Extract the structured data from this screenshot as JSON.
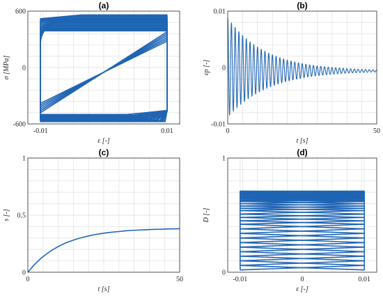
{
  "chart_data": [
    {
      "id": "a",
      "type": "line",
      "title": "(a)",
      "xlabel": "ε [-]",
      "ylabel": "σ [MPa]",
      "xlim": [
        -0.012,
        0.012
      ],
      "ylim": [
        -600,
        600
      ],
      "xticks": [
        -0.01,
        0.01
      ],
      "xtick_labels": [
        "-0.01",
        "0.01"
      ],
      "yticks": [
        -600,
        0,
        600
      ],
      "ytick_labels": [
        "-600",
        "0",
        "600"
      ],
      "grid": true,
      "series": [
        {
          "description_of_loops": "stacked hysteresis loops between ε=±0.01",
          "loops": [
            {
              "low": -500,
              "high": 560,
              "shift": 0.0065
            },
            {
              "low": -500,
              "high": 555,
              "shift": 0.006
            },
            {
              "low": -510,
              "high": 550,
              "shift": 0.0055
            },
            {
              "low": -515,
              "high": 545,
              "shift": 0.005
            },
            {
              "low": -520,
              "high": 540,
              "shift": 0.0046
            },
            {
              "low": -525,
              "high": 530,
              "shift": 0.0042
            },
            {
              "low": -530,
              "high": 520,
              "shift": 0.0038
            },
            {
              "low": -535,
              "high": 510,
              "shift": 0.0034
            },
            {
              "low": -540,
              "high": 500,
              "shift": 0.003
            },
            {
              "low": -545,
              "high": 490,
              "shift": 0.0027
            },
            {
              "low": -550,
              "high": 480,
              "shift": 0.0024
            },
            {
              "low": -555,
              "high": 470,
              "shift": 0.0021
            },
            {
              "low": -560,
              "high": 460,
              "shift": 0.0018
            },
            {
              "low": -560,
              "high": 450,
              "shift": 0.0015
            },
            {
              "low": -565,
              "high": 440,
              "shift": 0.0012
            },
            {
              "low": -565,
              "high": 430,
              "shift": 0.001
            },
            {
              "low": -570,
              "high": 420,
              "shift": 0.0008
            },
            {
              "low": -570,
              "high": 410,
              "shift": 0.0006
            },
            {
              "low": -575,
              "high": 400,
              "shift": 0.0004
            },
            {
              "low": -575,
              "high": 390,
              "shift": 0.0003
            }
          ]
        }
      ]
    },
    {
      "id": "b",
      "type": "line",
      "title": "(b)",
      "xlabel": "t [s]",
      "ylabel": "εp [-]",
      "xlim": [
        0,
        50
      ],
      "ylim": [
        -0.01,
        0.01
      ],
      "xticks": [
        0,
        50
      ],
      "xtick_labels": [
        "0",
        "50"
      ],
      "yticks": [
        -0.01,
        0,
        0.01
      ],
      "ytick_labels": [
        "-0.01",
        "0",
        "0.01"
      ],
      "grid": true,
      "series": [
        {
          "model": "damped oscillation",
          "amplitude0": 0.0088,
          "decay_time": 13,
          "cycles": 40,
          "offset_end": -0.0006
        }
      ]
    },
    {
      "id": "c",
      "type": "line",
      "title": "(c)",
      "xlabel": "t [s]",
      "ylabel": "s [-]",
      "xlim": [
        0,
        50
      ],
      "ylim": [
        0,
        1
      ],
      "xticks": [
        0,
        50
      ],
      "xtick_labels": [
        "0",
        "50"
      ],
      "yticks": [
        0,
        0.5,
        1
      ],
      "ytick_labels": [
        "0",
        "0.5",
        "1"
      ],
      "grid": true,
      "series": [
        {
          "x": [
            0,
            2,
            4,
            6,
            8,
            10,
            12,
            14,
            16,
            18,
            20,
            22,
            24,
            26,
            28,
            30,
            32,
            34,
            36,
            38,
            40,
            42,
            44,
            46,
            48,
            50
          ],
          "y": [
            0,
            0.062,
            0.114,
            0.158,
            0.194,
            0.225,
            0.251,
            0.272,
            0.29,
            0.305,
            0.318,
            0.329,
            0.338,
            0.346,
            0.352,
            0.357,
            0.362,
            0.366,
            0.369,
            0.371,
            0.374,
            0.376,
            0.377,
            0.379,
            0.38,
            0.381
          ]
        }
      ]
    },
    {
      "id": "d",
      "type": "line",
      "title": "(d)",
      "xlabel": "ε [-]",
      "ylabel": "D [-]",
      "xlim": [
        -0.012,
        0.012
      ],
      "ylim": [
        0,
        1
      ],
      "xticks": [
        -0.01,
        0,
        0.01
      ],
      "xtick_labels": [
        "-0.01",
        "0",
        "0.01"
      ],
      "yticks": [
        0,
        1
      ],
      "ytick_labels": [
        "0",
        "1"
      ],
      "grid": true,
      "series": [
        {
          "damage_levels": [
            0.02,
            0.06,
            0.1,
            0.14,
            0.18,
            0.22,
            0.26,
            0.3,
            0.34,
            0.38,
            0.42,
            0.45,
            0.48,
            0.51,
            0.54,
            0.56,
            0.58,
            0.6,
            0.62,
            0.63,
            0.64,
            0.65,
            0.66,
            0.67,
            0.68,
            0.69,
            0.7,
            0.71
          ]
        }
      ]
    }
  ]
}
